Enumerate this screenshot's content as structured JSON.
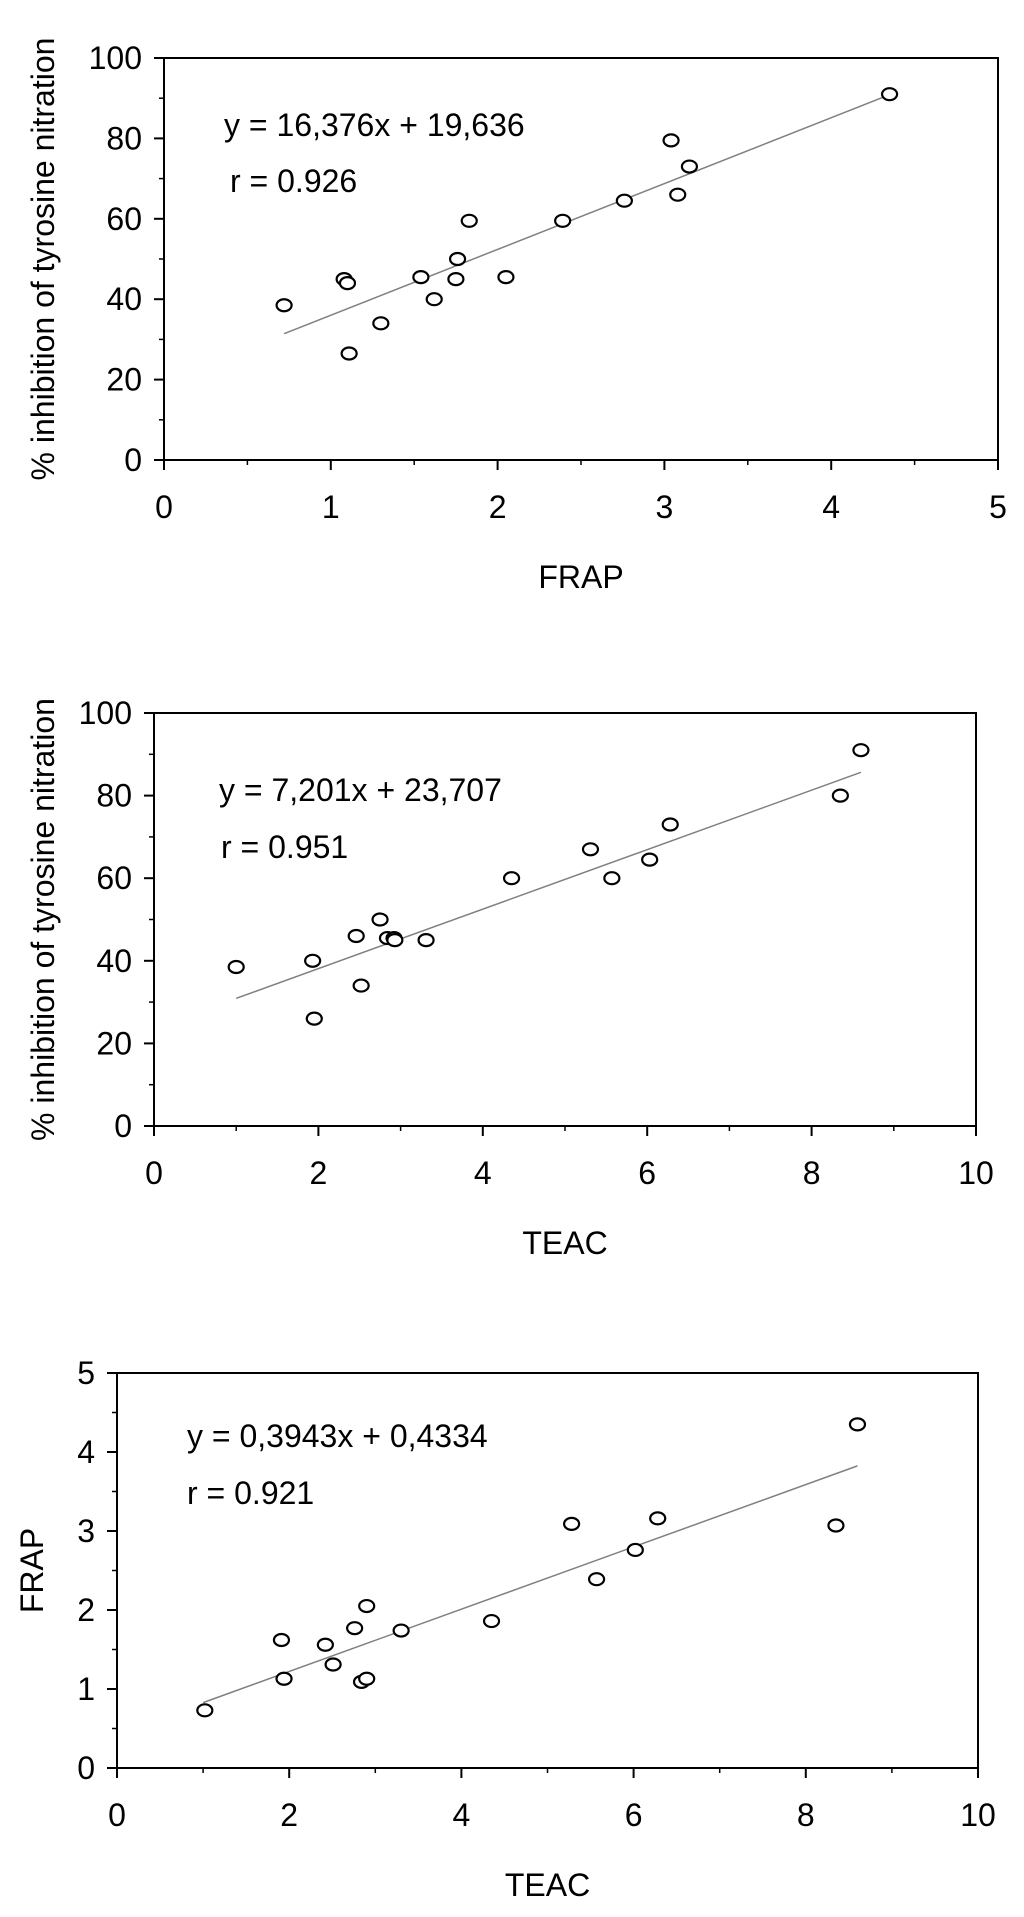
{
  "chart_data": [
    {
      "type": "scatter",
      "xlabel": "FRAP",
      "ylabel": "% inhibition of tyrosine nitration",
      "xlim": [
        0,
        5
      ],
      "ylim": [
        0,
        100
      ],
      "xticks": [
        0,
        1,
        2,
        3,
        4,
        5
      ],
      "yticks": [
        0,
        20,
        40,
        60,
        80,
        100
      ],
      "x_minor_step": 0.5,
      "y_minor_step": 10,
      "grid": false,
      "equation": "y = 16,376x + 19,636",
      "r_text": "r = 0.926",
      "trendline": {
        "slope": 16.376,
        "intercept": 19.636,
        "x_range": [
          0.72,
          4.35
        ]
      },
      "points": [
        {
          "x": 0.72,
          "y": 38.5
        },
        {
          "x": 1.08,
          "y": 45.0
        },
        {
          "x": 1.1,
          "y": 44.0
        },
        {
          "x": 1.11,
          "y": 26.5
        },
        {
          "x": 1.3,
          "y": 34.0
        },
        {
          "x": 1.54,
          "y": 45.5
        },
        {
          "x": 1.62,
          "y": 40.0
        },
        {
          "x": 1.75,
          "y": 45.0
        },
        {
          "x": 1.76,
          "y": 50.0
        },
        {
          "x": 1.83,
          "y": 59.5
        },
        {
          "x": 2.05,
          "y": 45.5
        },
        {
          "x": 2.39,
          "y": 59.5
        },
        {
          "x": 2.76,
          "y": 64.5
        },
        {
          "x": 3.04,
          "y": 79.5
        },
        {
          "x": 3.08,
          "y": 66.0
        },
        {
          "x": 3.15,
          "y": 73.0
        },
        {
          "x": 4.35,
          "y": 91.0
        }
      ]
    },
    {
      "type": "scatter",
      "xlabel": "TEAC",
      "ylabel": "% inhibition of tyrosine nitration",
      "xlim": [
        0,
        10
      ],
      "ylim": [
        0,
        100
      ],
      "xticks": [
        0,
        2,
        4,
        6,
        8,
        10
      ],
      "yticks": [
        0,
        20,
        40,
        60,
        80,
        100
      ],
      "x_minor_step": 1,
      "y_minor_step": 10,
      "grid": false,
      "equation": "y = 7,201x + 23,707",
      "r_text": "r = 0.951",
      "trendline": {
        "slope": 7.201,
        "intercept": 23.707,
        "x_range": [
          1.0,
          8.6
        ]
      },
      "points": [
        {
          "x": 1.0,
          "y": 38.5
        },
        {
          "x": 1.93,
          "y": 40.0
        },
        {
          "x": 1.95,
          "y": 26.0
        },
        {
          "x": 2.46,
          "y": 46.0
        },
        {
          "x": 2.52,
          "y": 34.0
        },
        {
          "x": 2.75,
          "y": 50.0
        },
        {
          "x": 2.84,
          "y": 45.5
        },
        {
          "x": 2.92,
          "y": 45.5
        },
        {
          "x": 2.93,
          "y": 45.0
        },
        {
          "x": 3.31,
          "y": 45.0
        },
        {
          "x": 4.35,
          "y": 60.0
        },
        {
          "x": 5.31,
          "y": 67.0
        },
        {
          "x": 5.57,
          "y": 60.0
        },
        {
          "x": 6.03,
          "y": 64.5
        },
        {
          "x": 6.28,
          "y": 73.0
        },
        {
          "x": 8.35,
          "y": 80.0
        },
        {
          "x": 8.6,
          "y": 91.0
        }
      ]
    },
    {
      "type": "scatter",
      "xlabel": "TEAC",
      "ylabel": "FRAP",
      "xlim": [
        0,
        10
      ],
      "ylim": [
        0,
        5
      ],
      "xticks": [
        0,
        2,
        4,
        6,
        8,
        10
      ],
      "yticks": [
        0,
        1,
        2,
        3,
        4,
        5
      ],
      "x_minor_step": 1,
      "y_minor_step": 0.5,
      "grid": false,
      "equation": "y = 0,3943x + 0,4334",
      "r_text": "r = 0.921",
      "trendline": {
        "slope": 0.3943,
        "intercept": 0.4334,
        "x_range": [
          1.0,
          8.6
        ]
      },
      "points": [
        {
          "x": 1.02,
          "y": 0.73
        },
        {
          "x": 1.91,
          "y": 1.62
        },
        {
          "x": 1.94,
          "y": 1.13
        },
        {
          "x": 2.42,
          "y": 1.56
        },
        {
          "x": 2.51,
          "y": 1.31
        },
        {
          "x": 2.76,
          "y": 1.77
        },
        {
          "x": 2.84,
          "y": 1.09
        },
        {
          "x": 2.9,
          "y": 1.13
        },
        {
          "x": 2.9,
          "y": 2.05
        },
        {
          "x": 3.3,
          "y": 1.74
        },
        {
          "x": 4.35,
          "y": 1.86
        },
        {
          "x": 5.28,
          "y": 3.09
        },
        {
          "x": 5.57,
          "y": 2.39
        },
        {
          "x": 6.02,
          "y": 2.76
        },
        {
          "x": 6.28,
          "y": 3.16
        },
        {
          "x": 8.35,
          "y": 3.07
        },
        {
          "x": 8.6,
          "y": 4.35
        }
      ]
    }
  ]
}
